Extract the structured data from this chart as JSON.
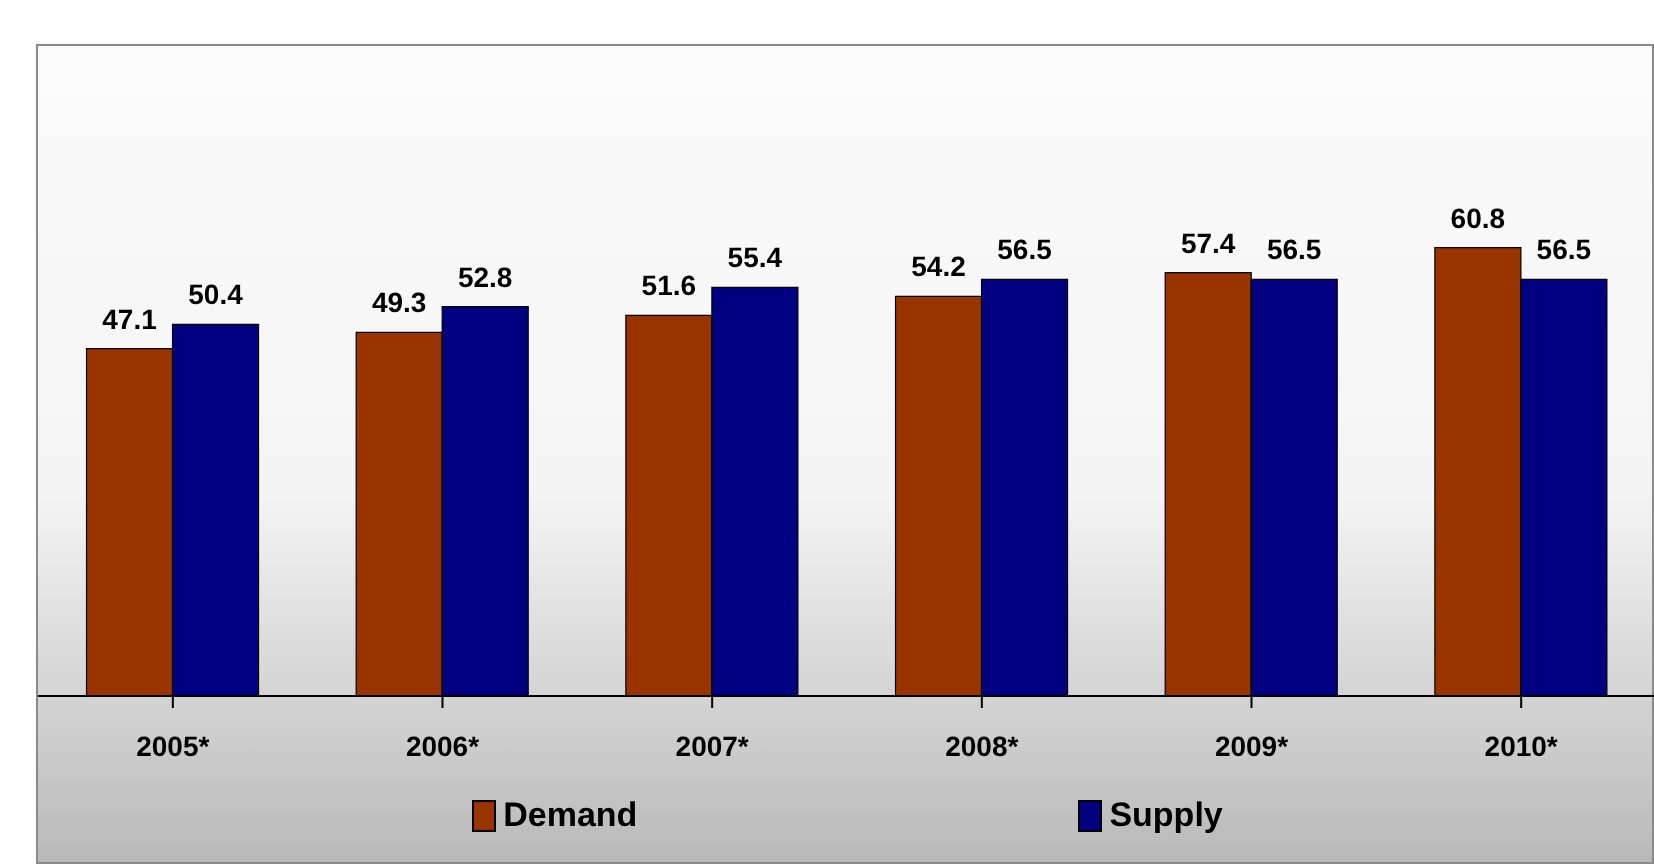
{
  "chart_data": {
    "type": "bar",
    "categories": [
      "2005*",
      "2006*",
      "2007*",
      "2008*",
      "2009*",
      "2010*"
    ],
    "series": [
      {
        "name": "Demand",
        "color": "#993300",
        "values": [
          47.1,
          49.3,
          51.6,
          54.2,
          57.4,
          60.8
        ]
      },
      {
        "name": "Supply",
        "color": "#000080",
        "values": [
          50.4,
          52.8,
          55.4,
          56.5,
          56.5,
          56.5
        ]
      }
    ],
    "data_labels": true,
    "grid": false,
    "legend": "bottom"
  }
}
